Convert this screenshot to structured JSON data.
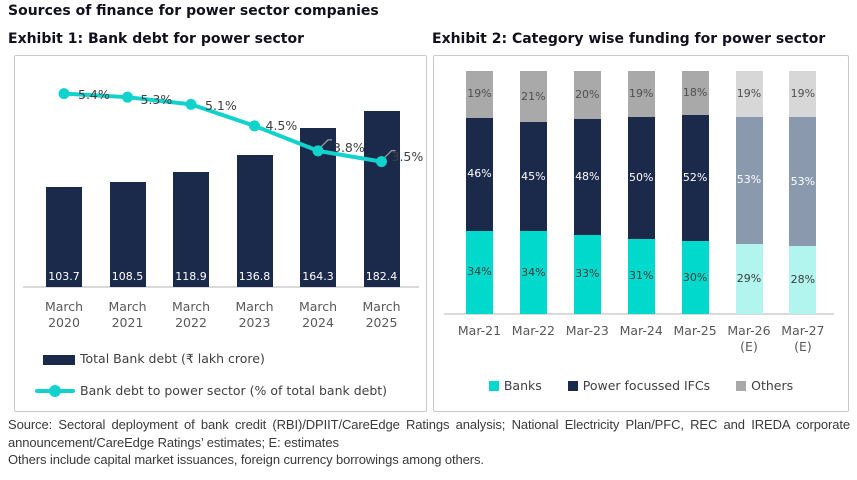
{
  "page": {
    "title": "Sources of finance for power sector companies"
  },
  "colors": {
    "navy": "#1b2a4a",
    "line_cyan": "#12d2cc",
    "banks_cyan": "#00d9cc",
    "banks_cyan_estimate": "#b2f5ef",
    "ifc_navy": "#1b2a4a",
    "ifc_navy_estimate": "#8a99ae",
    "others_gray": "#a9a9a9",
    "others_gray_estimate": "#d7d7d7",
    "axis_line": "#dadada",
    "leader_gray": "#9e9e9e",
    "label_dark": "#404040",
    "label_axis": "#595959",
    "label_white": "#ffffff"
  },
  "exhibit1": {
    "title": "Exhibit 1: Bank debt for power sector",
    "legend": [
      {
        "swatch": "bar",
        "label": "Total Bank debt (₹ lakh crore)"
      },
      {
        "swatch": "line",
        "label": "Bank debt to power sector (% of total bank debt)"
      }
    ]
  },
  "exhibit2": {
    "title": "Exhibit 2: Category wise funding for power sector",
    "legend": [
      {
        "swatch": "square",
        "label": "Banks"
      },
      {
        "swatch": "square",
        "label": "Power focussed IFCs"
      },
      {
        "swatch": "square",
        "label": "Others"
      }
    ]
  },
  "chart_data": [
    {
      "type": "bar",
      "title": "Exhibit 1: Bank debt for power sector",
      "categories": [
        "March 2020",
        "March 2021",
        "March 2022",
        "March 2023",
        "March 2024",
        "March 2025"
      ],
      "series": [
        {
          "name": "Total Bank debt (₹ lakh crore)",
          "type": "bar",
          "values": [
            103.7,
            108.5,
            118.9,
            136.8,
            164.3,
            182.4
          ],
          "value_labels": [
            "103.7",
            "108.5",
            "118.9",
            "136.8",
            "164.3",
            "182.4"
          ]
        },
        {
          "name": "Bank debt to power sector (% of total bank debt)",
          "type": "line",
          "values": [
            5.4,
            5.3,
            5.1,
            4.5,
            3.8,
            3.5
          ],
          "point_labels": [
            "5.4%",
            "5.3%",
            "5.1%",
            "4.5%",
            "3.8%",
            "3.5%"
          ]
        }
      ],
      "bar_axis_range": [
        0,
        216
      ],
      "line_axis_range": [
        0,
        6.45
      ],
      "grid": false,
      "legend_position": "bottom-left"
    },
    {
      "type": "stacked-bar",
      "title": "Exhibit 2: Category wise funding for power sector",
      "categories": [
        "Mar-21",
        "Mar-22",
        "Mar-23",
        "Mar-24",
        "Mar-25",
        "Mar-26 (E)",
        "Mar-27 (E)"
      ],
      "series": [
        {
          "name": "Banks",
          "values": [
            34,
            34,
            33,
            31,
            30,
            29,
            28
          ]
        },
        {
          "name": "Power focussed IFCs",
          "values": [
            46,
            45,
            48,
            50,
            52,
            53,
            53
          ]
        },
        {
          "name": "Others",
          "values": [
            19,
            21,
            20,
            19,
            18,
            19,
            19
          ]
        }
      ],
      "unit": "%",
      "estimate_flags": [
        false,
        false,
        false,
        false,
        false,
        true,
        true
      ],
      "grid": false,
      "legend_position": "bottom-center"
    }
  ],
  "footnote": {
    "source": "Source: Sectoral deployment of bank credit (RBI)/DPIIT/CareEdge Ratings analysis; National Electricity Plan/PFC, REC and IREDA corporate announcement/CareEdge Ratings’ estimates; E: estimates",
    "note": "Others include capital market issuances, foreign currency borrowings among others."
  }
}
